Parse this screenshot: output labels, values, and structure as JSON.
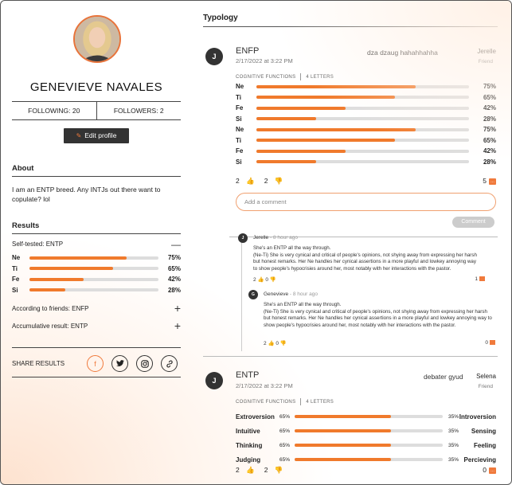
{
  "profile": {
    "name": "GENEVIEVE NAVALES",
    "following": "FOLLOWING: 20",
    "followers": "FOLLOWERS: 2",
    "edit_label": "Edit profile",
    "about_heading": "About",
    "about_text": "I am an ENTP breed. Any INTJs out there want to copulate? lol",
    "results_heading": "Results",
    "self_tested_label": "Self-tested:",
    "self_tested_value": "ENTP",
    "results_bars": [
      {
        "label": "Ne",
        "value": 75,
        "pct": "75%"
      },
      {
        "label": "Ti",
        "value": 65,
        "pct": "65%"
      },
      {
        "label": "Fe",
        "value": 42,
        "pct": "42%"
      },
      {
        "label": "Si",
        "value": 28,
        "pct": "28%"
      }
    ],
    "friends_label": "According to friends:",
    "friends_value": "ENFP",
    "accum_label": "Accumulative result:",
    "accum_value": "ENTP",
    "share_label": "SHARE RESULTS",
    "share_icons": [
      "facebook-icon",
      "twitter-icon",
      "instagram-icon",
      "link-icon"
    ]
  },
  "typology": {
    "heading": "Typology",
    "posts": [
      {
        "avatar_letter": "J",
        "title": "ENFP",
        "date": "2/17/2022 at 3:22 PM",
        "note": "dza dzaug hahahhahha",
        "user": "Jerelle",
        "user_role": "Friend",
        "cf_label": "COGNITIVE FUNCTIONS",
        "cf_count": "4 LETTERS",
        "bars": [
          {
            "label": "Ne",
            "value": 75,
            "pct": "75%"
          },
          {
            "label": "Ti",
            "value": 65,
            "pct": "65%"
          },
          {
            "label": "Fe",
            "value": 42,
            "pct": "42%"
          },
          {
            "label": "Si",
            "value": 28,
            "pct": "28%"
          },
          {
            "label": "Ne",
            "value": 75,
            "pct": "75%"
          },
          {
            "label": "Ti",
            "value": 65,
            "pct": "65%"
          },
          {
            "label": "Fe",
            "value": 42,
            "pct": "42%"
          },
          {
            "label": "Si",
            "value": 28,
            "pct": "28%"
          }
        ],
        "likes": "2",
        "dislikes": "2",
        "comments": "5",
        "add_comment_placeholder": "Add a comment",
        "comment_button": "Comment",
        "comment_list": [
          {
            "avatar": "J",
            "name": "Jerelle",
            "time": "8 hour ago",
            "text": "She's an ENTP all the way through.\n(Ne-Ti) She is very cynical and critical of people's opinions, not shying away from expressing her harsh but honest remarks. Her Ne handles her cynical assertions in a more playful and lowkey annoying way to show people's hypocrisies around her, most notably with her interactions with the pastor.",
            "likes": "2",
            "dislikes": "0",
            "replies": "1"
          },
          {
            "avatar": "G",
            "name": "Genevieve",
            "time": "8 hour ago",
            "text": "She's an ENTP all the way through.\n(Ne-Ti) She is very cynical and critical of people's opinions, not shying away from expressing her harsh but honest remarks. Her Ne handles her cynical assertions in a more playful and lowkey annoying way to show people's hypocrisies around her, most notably with her interactions with the pastor.",
            "likes": "2",
            "dislikes": "0",
            "replies": "0"
          }
        ]
      },
      {
        "avatar_letter": "J",
        "title": "ENTP",
        "date": "2/17/2022 at 3:22 PM",
        "note": "debater gyud",
        "user": "Selena",
        "user_role": "Friend",
        "cf_label": "COGNITIVE FUNCTIONS",
        "cf_count": "4 LETTERS",
        "pairs": [
          {
            "left": "Extroversion",
            "left_pct": "65%",
            "value": 65,
            "right_pct": "35%",
            "right": "Introversion"
          },
          {
            "left": "Intuitive",
            "left_pct": "65%",
            "value": 65,
            "right_pct": "35%",
            "right": "Sensing"
          },
          {
            "left": "Thinking",
            "left_pct": "65%",
            "value": 65,
            "right_pct": "35%",
            "right": "Feeling"
          },
          {
            "left": "Judging",
            "left_pct": "65%",
            "value": 65,
            "right_pct": "35%",
            "right": "Percieving"
          }
        ],
        "likes": "2",
        "dislikes": "2",
        "comments": "0"
      }
    ]
  },
  "colors": {
    "accent": "#f07a2c",
    "dark": "#333333",
    "track": "#dddddd"
  }
}
